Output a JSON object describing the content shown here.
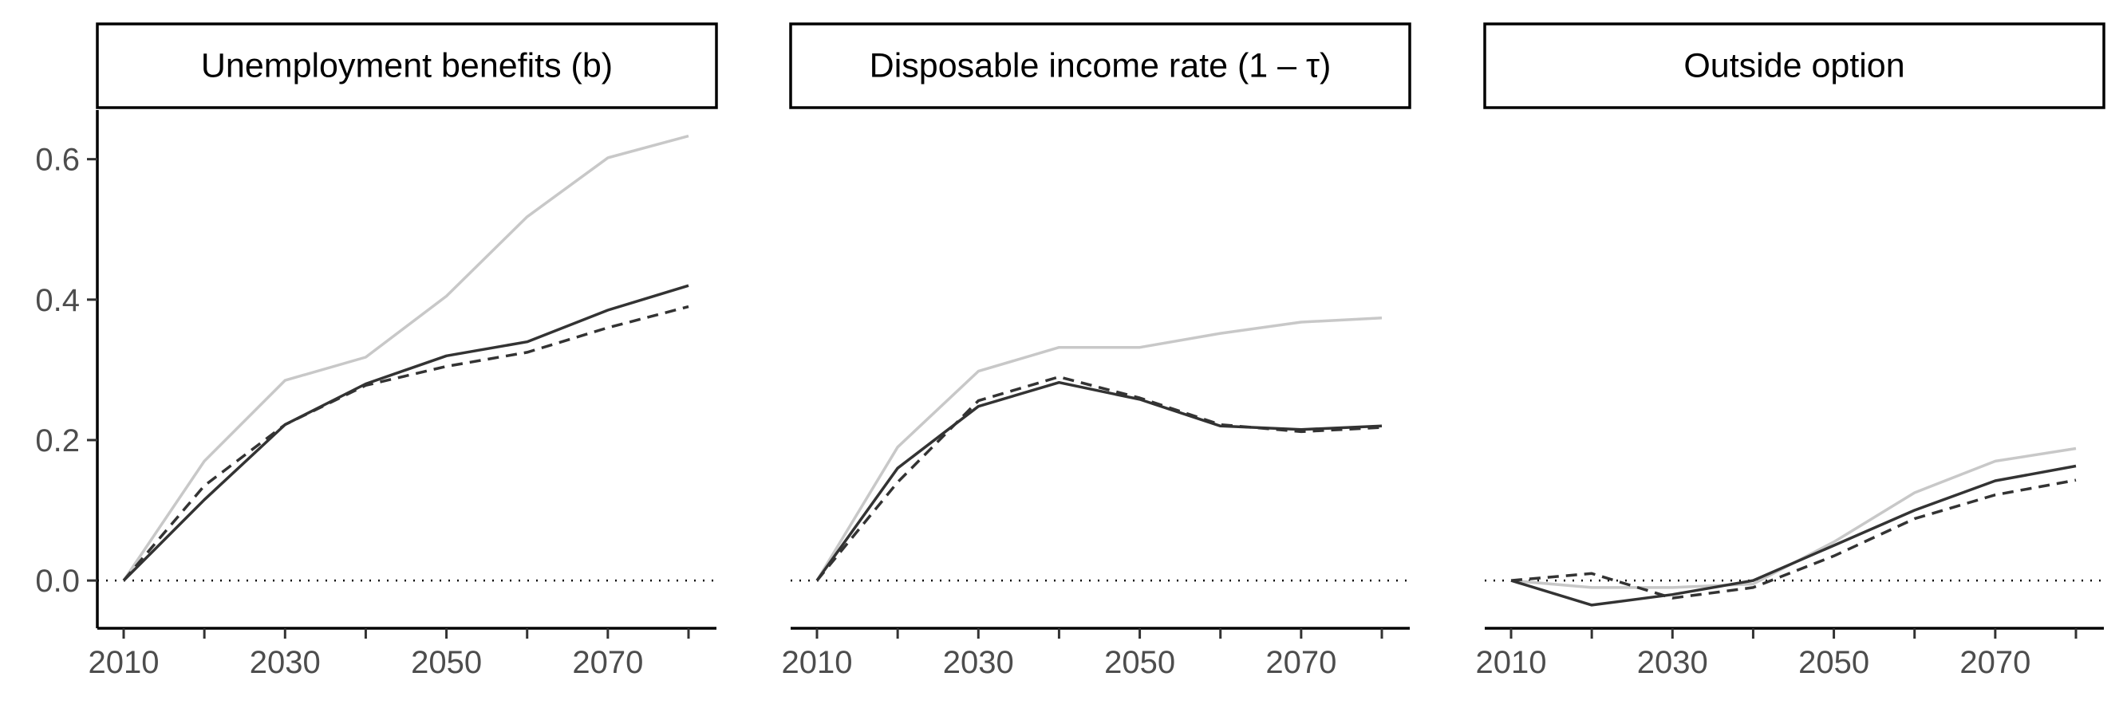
{
  "chart_data": [
    {
      "type": "line",
      "title": "Unemployment benefits (b)",
      "x": [
        2010,
        2020,
        2030,
        2040,
        2050,
        2060,
        2070,
        2080
      ],
      "xticks": [
        "2010",
        "2030",
        "2050",
        "2070"
      ],
      "yticks": [
        "0.0",
        "0.2",
        "0.4",
        "0.6"
      ],
      "ylim": [
        -0.068,
        0.67
      ],
      "reference_line": 0,
      "series": [
        {
          "style": "light-grey-solid",
          "color": "#c8c8c8",
          "values": [
            0.0,
            0.17,
            0.285,
            0.318,
            0.405,
            0.518,
            0.602,
            0.633
          ]
        },
        {
          "style": "dark-solid",
          "color": "#333333",
          "values": [
            0.0,
            0.115,
            0.222,
            0.28,
            0.32,
            0.34,
            0.385,
            0.42
          ]
        },
        {
          "style": "dark-dashed",
          "color": "#333333",
          "values": [
            0.0,
            0.135,
            0.222,
            0.278,
            0.305,
            0.325,
            0.36,
            0.39
          ]
        }
      ]
    },
    {
      "type": "line",
      "title": "Disposable income rate (1 – τ)",
      "x": [
        2010,
        2020,
        2030,
        2040,
        2050,
        2060,
        2070,
        2080
      ],
      "xticks": [
        "2010",
        "2030",
        "2050",
        "2070"
      ],
      "ylim": [
        -0.068,
        0.67
      ],
      "reference_line": 0,
      "series": [
        {
          "style": "light-grey-solid",
          "color": "#c8c8c8",
          "values": [
            0.0,
            0.19,
            0.298,
            0.332,
            0.332,
            0.352,
            0.368,
            0.374
          ]
        },
        {
          "style": "dark-solid",
          "color": "#333333",
          "values": [
            0.0,
            0.16,
            0.248,
            0.282,
            0.258,
            0.22,
            0.215,
            0.22
          ]
        },
        {
          "style": "dark-dashed",
          "color": "#333333",
          "values": [
            0.0,
            0.14,
            0.256,
            0.29,
            0.26,
            0.222,
            0.212,
            0.218
          ]
        }
      ]
    },
    {
      "type": "line",
      "title": "Outside option",
      "x": [
        2010,
        2020,
        2030,
        2040,
        2050,
        2060,
        2070,
        2080
      ],
      "xticks": [
        "2010",
        "2030",
        "2050",
        "2070"
      ],
      "ylim": [
        -0.068,
        0.67
      ],
      "reference_line": 0,
      "series": [
        {
          "style": "light-grey-solid",
          "color": "#c8c8c8",
          "values": [
            0.0,
            -0.01,
            -0.01,
            -0.005,
            0.055,
            0.125,
            0.17,
            0.188
          ]
        },
        {
          "style": "dark-solid",
          "color": "#333333",
          "values": [
            0.0,
            -0.035,
            -0.02,
            0.0,
            0.05,
            0.1,
            0.142,
            0.163
          ]
        },
        {
          "style": "dark-dashed",
          "color": "#333333",
          "values": [
            0.0,
            0.01,
            -0.025,
            -0.01,
            0.035,
            0.088,
            0.122,
            0.143
          ]
        }
      ]
    }
  ]
}
